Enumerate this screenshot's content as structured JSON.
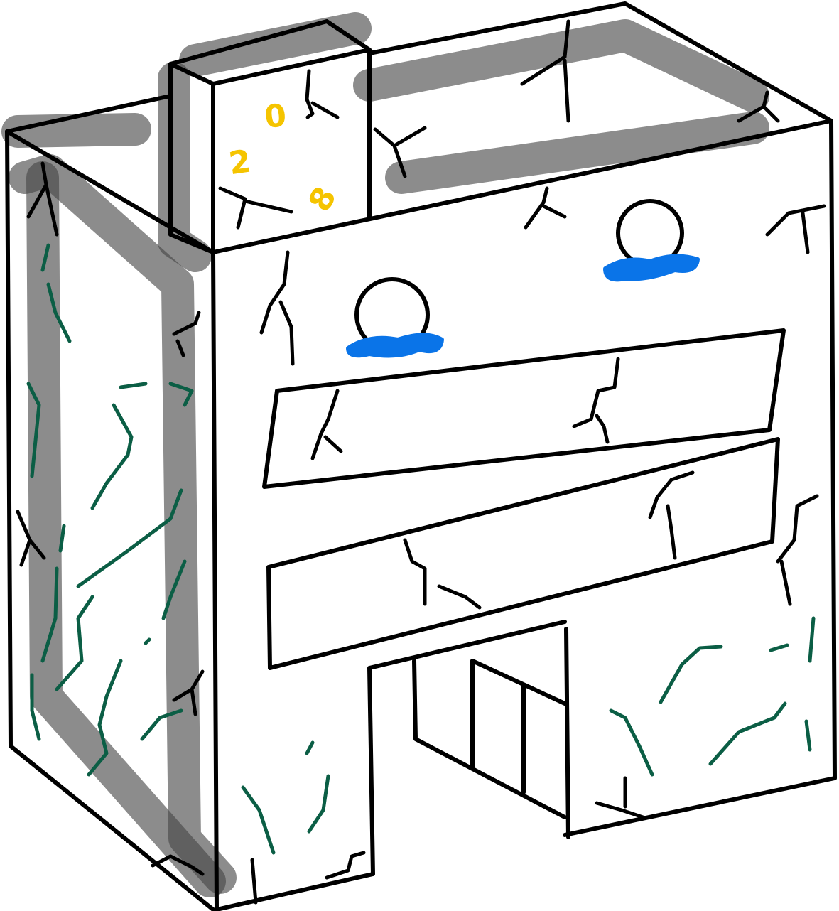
{
  "drawing": {
    "digits": [
      "0",
      "2",
      "8"
    ],
    "colors": {
      "outline": "#000000",
      "shading": "#464646",
      "moss": "#0b5e45",
      "window_water": "#0a74e8",
      "digits": "#f5c400",
      "background": "#ffffff"
    }
  }
}
